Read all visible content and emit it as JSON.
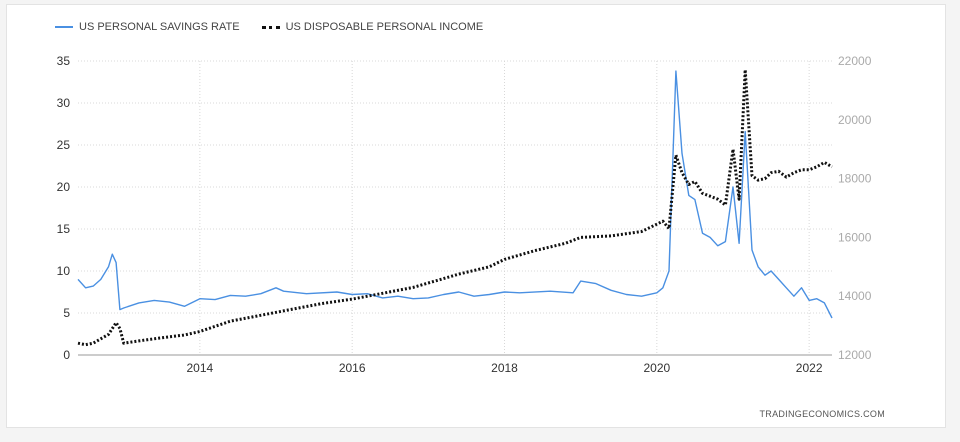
{
  "legend": {
    "series1_label": "US PERSONAL SAVINGS RATE",
    "series2_label": "US DISPOSABLE PERSONAL INCOME"
  },
  "source": "TRADINGECONOMICS.COM",
  "chart_data": {
    "type": "line",
    "x_ticks": [
      "2014",
      "2016",
      "2018",
      "2020",
      "2022"
    ],
    "y_left_ticks": [
      "0",
      "5",
      "10",
      "15",
      "20",
      "25",
      "30",
      "35"
    ],
    "y_right_ticks": [
      "12000",
      "14000",
      "16000",
      "18000",
      "20000",
      "22000"
    ],
    "xlim": [
      2012.4,
      2022.3
    ],
    "ylim_left": [
      0,
      35
    ],
    "ylim_right": [
      12000,
      22000
    ],
    "grid": true,
    "legend_position": "top-left",
    "series": [
      {
        "name": "US PERSONAL SAVINGS RATE",
        "axis": "left",
        "color": "#4a90e2",
        "style": "solid",
        "x": [
          2012.4,
          2012.5,
          2012.6,
          2012.7,
          2012.8,
          2012.85,
          2012.9,
          2012.95,
          2013.0,
          2013.2,
          2013.4,
          2013.6,
          2013.8,
          2014.0,
          2014.2,
          2014.4,
          2014.6,
          2014.8,
          2015.0,
          2015.1,
          2015.4,
          2015.8,
          2016.0,
          2016.2,
          2016.4,
          2016.6,
          2016.8,
          2017.0,
          2017.2,
          2017.4,
          2017.6,
          2017.8,
          2018.0,
          2018.2,
          2018.6,
          2018.9,
          2019.0,
          2019.2,
          2019.4,
          2019.6,
          2019.8,
          2020.0,
          2020.08,
          2020.16,
          2020.25,
          2020.33,
          2020.42,
          2020.5,
          2020.6,
          2020.7,
          2020.8,
          2020.9,
          2021.0,
          2021.08,
          2021.16,
          2021.25,
          2021.33,
          2021.42,
          2021.5,
          2021.6,
          2021.7,
          2021.8,
          2021.9,
          2022.0,
          2022.1,
          2022.2,
          2022.3
        ],
        "y": [
          9.0,
          8.0,
          8.2,
          9.0,
          10.5,
          12.0,
          11.0,
          5.4,
          5.6,
          6.2,
          6.5,
          6.3,
          5.8,
          6.7,
          6.6,
          7.1,
          7.0,
          7.3,
          8.0,
          7.6,
          7.3,
          7.5,
          7.2,
          7.3,
          6.8,
          7.0,
          6.7,
          6.8,
          7.2,
          7.5,
          7.0,
          7.2,
          7.5,
          7.4,
          7.6,
          7.4,
          8.8,
          8.5,
          7.7,
          7.2,
          7.0,
          7.4,
          8.0,
          10.0,
          33.8,
          24.0,
          19.0,
          18.5,
          14.5,
          14.0,
          13.0,
          13.5,
          20.0,
          13.3,
          26.6,
          12.5,
          10.5,
          9.5,
          10.0,
          9.0,
          8.0,
          7.0,
          8.0,
          6.5,
          6.7,
          6.2,
          4.4
        ]
      },
      {
        "name": "US DISPOSABLE PERSONAL INCOME",
        "axis": "right",
        "color": "#111111",
        "style": "dotted",
        "x": [
          2012.4,
          2012.5,
          2012.6,
          2012.7,
          2012.8,
          2012.9,
          2012.95,
          2013.0,
          2013.2,
          2013.4,
          2013.6,
          2013.8,
          2014.0,
          2014.4,
          2014.8,
          2015.2,
          2015.6,
          2016.0,
          2016.4,
          2016.8,
          2017.0,
          2017.4,
          2017.8,
          2018.0,
          2018.4,
          2018.8,
          2019.0,
          2019.4,
          2019.8,
          2020.0,
          2020.08,
          2020.16,
          2020.25,
          2020.33,
          2020.42,
          2020.5,
          2020.6,
          2020.7,
          2020.8,
          2020.9,
          2021.0,
          2021.08,
          2021.16,
          2021.25,
          2021.33,
          2021.42,
          2021.5,
          2021.6,
          2021.7,
          2021.8,
          2021.9,
          2022.0,
          2022.1,
          2022.2,
          2022.3
        ],
        "y": [
          12400,
          12350,
          12400,
          12550,
          12700,
          13100,
          12900,
          12400,
          12480,
          12550,
          12620,
          12680,
          12800,
          13150,
          13350,
          13550,
          13750,
          13900,
          14100,
          14300,
          14450,
          14750,
          15000,
          15250,
          15550,
          15800,
          16000,
          16050,
          16200,
          16450,
          16550,
          16300,
          18800,
          18200,
          17800,
          17900,
          17500,
          17400,
          17300,
          17100,
          19000,
          17300,
          21700,
          18100,
          17950,
          18000,
          18200,
          18250,
          18050,
          18200,
          18300,
          18300,
          18400,
          18550,
          18400
        ]
      }
    ]
  }
}
